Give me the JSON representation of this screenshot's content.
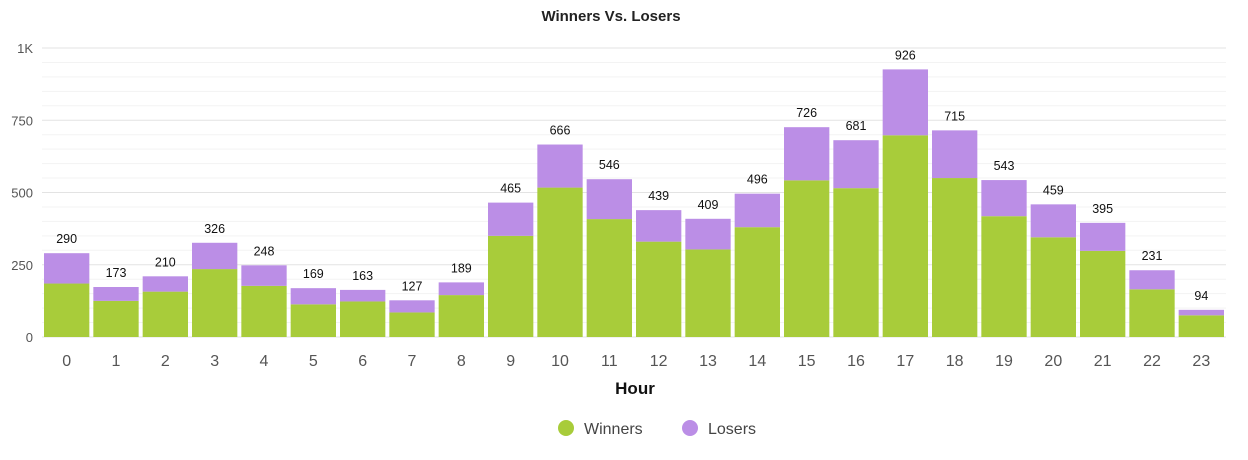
{
  "chart_data": {
    "type": "bar",
    "stacked": true,
    "title": "Winners Vs. Losers",
    "xlabel": "Hour",
    "ylabel": "",
    "ylim": [
      0,
      1000
    ],
    "yticks": [
      0,
      250,
      500,
      750,
      1000
    ],
    "ytick_labels": [
      "0",
      "250",
      "500",
      "750",
      "1K"
    ],
    "grid": true,
    "legend_position": "bottom-center",
    "categories": [
      "0",
      "1",
      "2",
      "3",
      "4",
      "5",
      "6",
      "7",
      "8",
      "9",
      "10",
      "11",
      "12",
      "13",
      "14",
      "15",
      "16",
      "17",
      "18",
      "19",
      "20",
      "21",
      "22",
      "23"
    ],
    "series": [
      {
        "name": "Winners",
        "color": "#a8cc3a",
        "values": [
          185,
          125,
          157,
          235,
          177,
          113,
          123,
          85,
          145,
          350,
          517,
          408,
          330,
          303,
          380,
          542,
          515,
          698,
          550,
          418,
          345,
          298,
          165,
          75
        ]
      },
      {
        "name": "Losers",
        "color": "#bb8ee6",
        "values": [
          105,
          48,
          53,
          91,
          71,
          56,
          40,
          42,
          44,
          115,
          149,
          138,
          109,
          106,
          116,
          184,
          166,
          228,
          165,
          125,
          114,
          97,
          66,
          19
        ]
      }
    ],
    "totals": [
      290,
      173,
      210,
      326,
      248,
      169,
      163,
      127,
      189,
      465,
      666,
      546,
      439,
      409,
      496,
      726,
      681,
      926,
      715,
      543,
      459,
      395,
      231,
      94
    ]
  }
}
